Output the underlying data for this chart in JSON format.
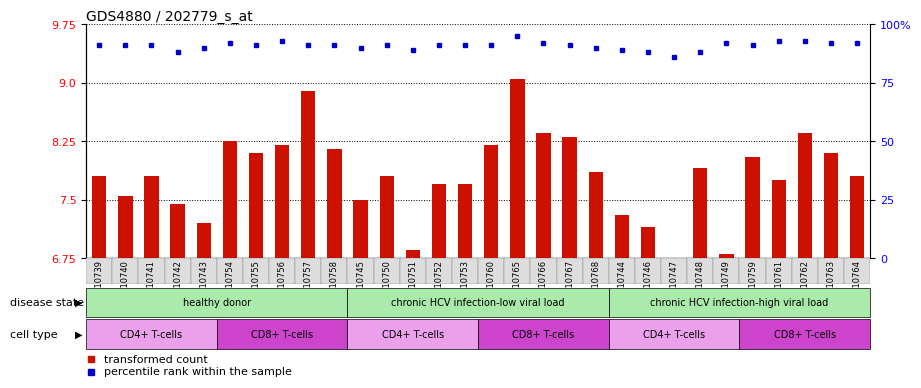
{
  "title": "GDS4880 / 202779_s_at",
  "samples": [
    "GSM1210739",
    "GSM1210740",
    "GSM1210741",
    "GSM1210742",
    "GSM1210743",
    "GSM1210754",
    "GSM1210755",
    "GSM1210756",
    "GSM1210757",
    "GSM1210758",
    "GSM1210745",
    "GSM1210750",
    "GSM1210751",
    "GSM1210752",
    "GSM1210753",
    "GSM1210760",
    "GSM1210765",
    "GSM1210766",
    "GSM1210767",
    "GSM1210768",
    "GSM1210744",
    "GSM1210746",
    "GSM1210747",
    "GSM1210748",
    "GSM1210749",
    "GSM1210759",
    "GSM1210761",
    "GSM1210762",
    "GSM1210763",
    "GSM1210764"
  ],
  "bar_values": [
    7.8,
    7.55,
    7.8,
    7.45,
    7.2,
    8.25,
    8.1,
    8.2,
    8.9,
    8.15,
    7.5,
    7.8,
    6.85,
    7.7,
    7.7,
    8.2,
    9.05,
    8.35,
    8.3,
    7.85,
    7.3,
    7.15,
    6.7,
    7.9,
    6.8,
    8.05,
    7.75,
    8.35,
    8.1,
    7.8
  ],
  "percentile_values": [
    91,
    91,
    91,
    88,
    90,
    92,
    91,
    93,
    91,
    91,
    90,
    91,
    89,
    91,
    91,
    91,
    95,
    92,
    91,
    90,
    89,
    88,
    86,
    88,
    92,
    91,
    93,
    93,
    92,
    92
  ],
  "ylim_left": [
    6.75,
    9.75
  ],
  "ylim_right": [
    0,
    100
  ],
  "yticks_left": [
    6.75,
    7.5,
    8.25,
    9.0,
    9.75
  ],
  "yticks_right": [
    0,
    25,
    50,
    75,
    100
  ],
  "bar_color": "#CC1100",
  "dot_color": "#0000CC",
  "ds_groups": [
    {
      "label": "healthy donor",
      "start": 0,
      "end": 9,
      "color": "#AAEAAA"
    },
    {
      "label": "chronic HCV infection-low viral load",
      "start": 10,
      "end": 19,
      "color": "#AAEAAA"
    },
    {
      "label": "chronic HCV infection-high viral load",
      "start": 20,
      "end": 29,
      "color": "#AAEAAA"
    }
  ],
  "ct_groups": [
    {
      "label": "CD4+ T-cells",
      "start": 0,
      "end": 4,
      "color": "#EAA0EA"
    },
    {
      "label": "CD8+ T-cells",
      "start": 5,
      "end": 9,
      "color": "#CC44CC"
    },
    {
      "label": "CD4+ T-cells",
      "start": 10,
      "end": 14,
      "color": "#EAA0EA"
    },
    {
      "label": "CD8+ T-cells",
      "start": 15,
      "end": 19,
      "color": "#CC44CC"
    },
    {
      "label": "CD4+ T-cells",
      "start": 20,
      "end": 24,
      "color": "#EAA0EA"
    },
    {
      "label": "CD8+ T-cells",
      "start": 25,
      "end": 29,
      "color": "#CC44CC"
    }
  ],
  "legend_items": [
    {
      "label": "transformed count",
      "color": "#CC1100"
    },
    {
      "label": "percentile rank within the sample",
      "color": "#0000CC"
    }
  ],
  "chart_bg": "#FFFFFF",
  "sample_label_bg": "#DDDDDD",
  "title_fontsize": 10,
  "tick_fontsize": 6,
  "annot_fontsize": 8,
  "legend_fontsize": 8
}
